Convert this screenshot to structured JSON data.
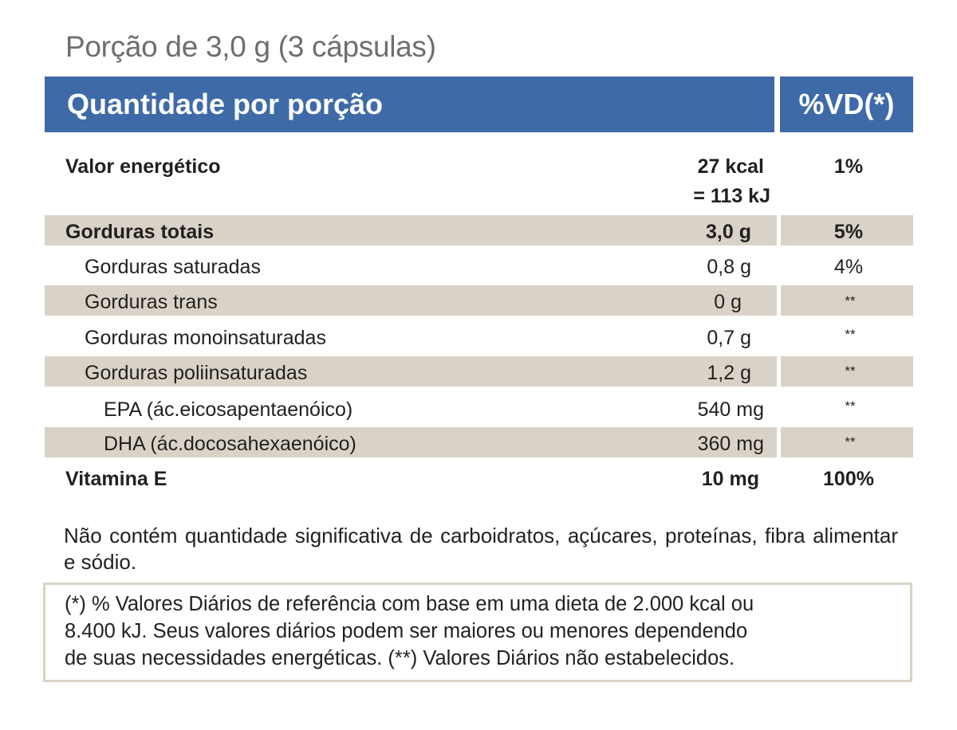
{
  "serving": "Porção de 3,0 g (3 cápsulas)",
  "header": {
    "left": "Quantidade por porção",
    "right": "%VD(*)"
  },
  "colors": {
    "header_bg": "#3e6aa8",
    "row_shade": "#d9d3c7",
    "text": "#231f20"
  },
  "rows": [
    {
      "name": "Valor energético",
      "amount": "27 kcal",
      "amount2": "= 113 kJ",
      "vd": "1%"
    },
    {
      "name": "Gorduras totais",
      "amount": "3,0 g",
      "vd": "5%"
    },
    {
      "name": "Gorduras saturadas",
      "amount": "0,8 g",
      "vd": "4%"
    },
    {
      "name": "Gorduras trans",
      "amount": "0 g",
      "vd": "**"
    },
    {
      "name": "Gorduras monoinsaturadas",
      "amount": "0,7 g",
      "vd": "**"
    },
    {
      "name": "Gorduras poliinsaturadas",
      "amount": "1,2 g",
      "vd": "**"
    },
    {
      "name": "EPA (ác.eicosapentaenóico)",
      "amount": "540 mg",
      "vd": "**"
    },
    {
      "name": "DHA (ác.docosahexaenóico)",
      "amount": "360 mg",
      "vd": "**"
    },
    {
      "name": "Vitamina E",
      "amount": "10 mg",
      "vd": "100%"
    }
  ],
  "note": "Não contém quantidade significativa de carboidratos, açúcares, proteínas, fibra alimentar e sódio.",
  "footnote": {
    "line1": "(*) % Valores Diários de referência com base em uma dieta de 2.000 kcal ou",
    "line2": "8.400 kJ. Seus valores diários podem ser maiores ou menores dependendo",
    "line3": "de suas necessidades energéticas. (**) Valores Diários não estabelecidos."
  }
}
